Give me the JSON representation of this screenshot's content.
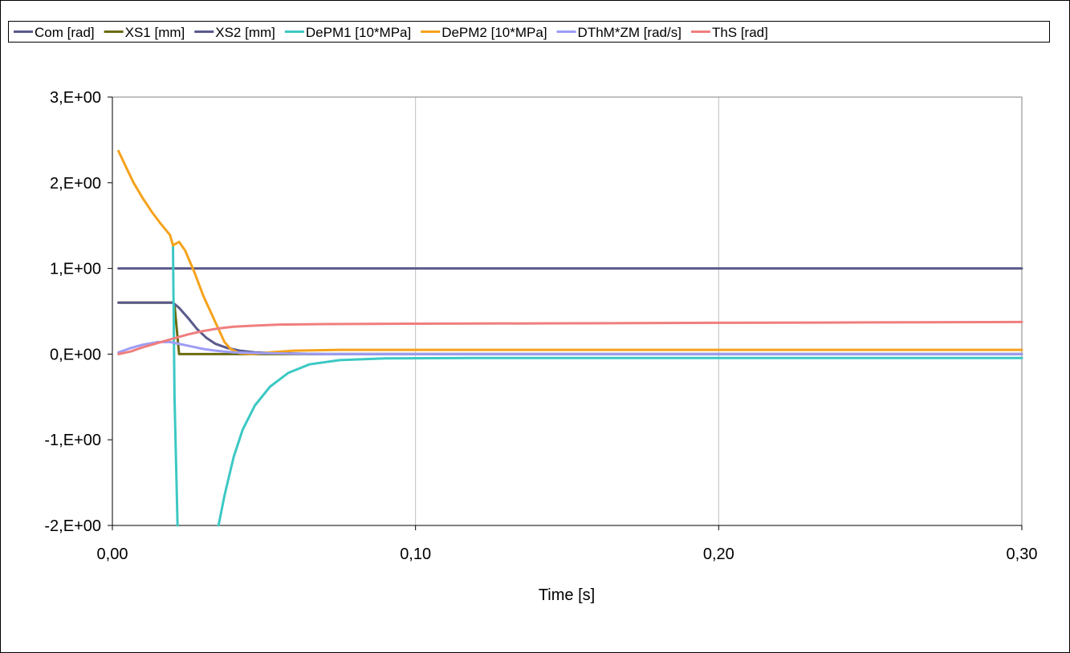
{
  "chart_data": {
    "type": "line",
    "xlabel": "Time [s]",
    "ylabel": "",
    "xlim": [
      0,
      0.3
    ],
    "ylim": [
      -2,
      3
    ],
    "x_ticks": [
      0,
      0.1,
      0.2,
      0.3
    ],
    "x_tick_labels": [
      "0,00",
      "0,10",
      "0,20",
      "0,30"
    ],
    "y_ticks": [
      -2,
      -1,
      0,
      1,
      2,
      3
    ],
    "y_tick_labels": [
      "-2,E+00",
      "-1,E+00",
      "0,E+00",
      "1,E+00",
      "2,E+00",
      "3,E+00"
    ],
    "grid": "vertical",
    "legend_position": "top",
    "series": [
      {
        "name": "Com [rad]",
        "color": "#5a5a8c",
        "points": [
          [
            0.002,
            1.0
          ],
          [
            0.3,
            1.0
          ]
        ]
      },
      {
        "name": "XS1 [mm]",
        "color": "#6b6b10",
        "points": [
          [
            0.002,
            0.6
          ],
          [
            0.02,
            0.6
          ],
          [
            0.0205,
            0.58
          ],
          [
            0.022,
            0.0
          ],
          [
            0.3,
            0.0
          ]
        ]
      },
      {
        "name": "XS2 [mm]",
        "color": "#5a5a8c",
        "points": [
          [
            0.002,
            0.6
          ],
          [
            0.02,
            0.6
          ],
          [
            0.022,
            0.54
          ],
          [
            0.025,
            0.42
          ],
          [
            0.028,
            0.29
          ],
          [
            0.031,
            0.19
          ],
          [
            0.034,
            0.12
          ],
          [
            0.038,
            0.07
          ],
          [
            0.042,
            0.04
          ],
          [
            0.047,
            0.02
          ],
          [
            0.055,
            0.01
          ],
          [
            0.07,
            0.0
          ],
          [
            0.3,
            0.0
          ]
        ]
      },
      {
        "name": "DePM1 [10*MPa]",
        "color": "#3cc8c4",
        "points": [
          [
            0.02,
            1.27
          ],
          [
            0.0205,
            -0.5
          ],
          [
            0.0215,
            -2.0
          ]
        ],
        "points_b": [
          [
            0.035,
            -2.0
          ],
          [
            0.037,
            -1.65
          ],
          [
            0.04,
            -1.2
          ],
          [
            0.043,
            -0.88
          ],
          [
            0.047,
            -0.6
          ],
          [
            0.052,
            -0.38
          ],
          [
            0.058,
            -0.22
          ],
          [
            0.065,
            -0.12
          ],
          [
            0.075,
            -0.07
          ],
          [
            0.09,
            -0.05
          ],
          [
            0.12,
            -0.045
          ],
          [
            0.2,
            -0.045
          ],
          [
            0.3,
            -0.045
          ]
        ]
      },
      {
        "name": "DePM2 [10*MPa]",
        "color": "#f5a21b",
        "points": [
          [
            0.002,
            2.37
          ],
          [
            0.004,
            2.22
          ],
          [
            0.007,
            2.0
          ],
          [
            0.01,
            1.82
          ],
          [
            0.013,
            1.66
          ],
          [
            0.016,
            1.52
          ],
          [
            0.019,
            1.39
          ],
          [
            0.02,
            1.27
          ],
          [
            0.022,
            1.31
          ],
          [
            0.024,
            1.21
          ],
          [
            0.027,
            0.96
          ],
          [
            0.03,
            0.68
          ],
          [
            0.034,
            0.37
          ],
          [
            0.037,
            0.14
          ],
          [
            0.039,
            0.06
          ],
          [
            0.042,
            0.01
          ],
          [
            0.046,
            0.0
          ],
          [
            0.052,
            0.02
          ],
          [
            0.06,
            0.04
          ],
          [
            0.075,
            0.05
          ],
          [
            0.3,
            0.05
          ]
        ]
      },
      {
        "name": "DThM*ZM [rad/s]",
        "color": "#9d9df5",
        "points": [
          [
            0.002,
            0.02
          ],
          [
            0.006,
            0.07
          ],
          [
            0.01,
            0.11
          ],
          [
            0.015,
            0.14
          ],
          [
            0.019,
            0.14
          ],
          [
            0.022,
            0.12
          ],
          [
            0.026,
            0.09
          ],
          [
            0.03,
            0.06
          ],
          [
            0.034,
            0.04
          ],
          [
            0.04,
            0.02
          ],
          [
            0.05,
            0.01
          ],
          [
            0.07,
            0.0
          ],
          [
            0.3,
            0.0
          ]
        ]
      },
      {
        "name": "ThS [rad]",
        "color": "#f07e7e",
        "points": [
          [
            0.002,
            0.0
          ],
          [
            0.006,
            0.03
          ],
          [
            0.01,
            0.08
          ],
          [
            0.015,
            0.13
          ],
          [
            0.02,
            0.18
          ],
          [
            0.025,
            0.23
          ],
          [
            0.03,
            0.27
          ],
          [
            0.035,
            0.3
          ],
          [
            0.04,
            0.32
          ],
          [
            0.045,
            0.33
          ],
          [
            0.055,
            0.345
          ],
          [
            0.07,
            0.35
          ],
          [
            0.1,
            0.355
          ],
          [
            0.15,
            0.36
          ],
          [
            0.2,
            0.365
          ],
          [
            0.25,
            0.37
          ],
          [
            0.3,
            0.375
          ]
        ]
      }
    ]
  }
}
